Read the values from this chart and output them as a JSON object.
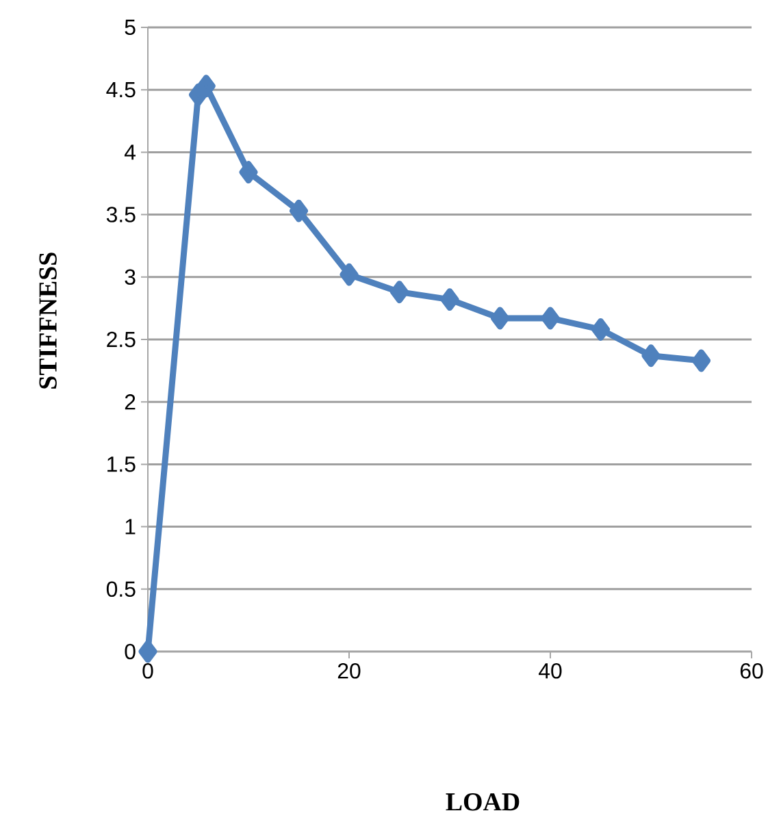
{
  "chart_data": {
    "type": "line",
    "xlabel": "LOAD",
    "ylabel": "STIFFNESS",
    "x": [
      0,
      5,
      5.8,
      10,
      15,
      20,
      25,
      30,
      35,
      40,
      45,
      50,
      55
    ],
    "series": [
      {
        "color": "#4f81bd",
        "values": [
          0,
          4.46,
          4.53,
          3.84,
          3.53,
          3.02,
          2.88,
          2.82,
          2.67,
          2.67,
          2.58,
          2.37,
          2.33
        ]
      }
    ],
    "xlim": [
      0,
      60
    ],
    "ylim": [
      0,
      5
    ],
    "xticks": [
      0,
      20,
      40,
      60
    ],
    "yticks": [
      0,
      0.5,
      1,
      1.5,
      2,
      2.5,
      3,
      3.5,
      4,
      4.5,
      5
    ],
    "grid": "y",
    "marker": "diamond",
    "line_style": "solid"
  }
}
